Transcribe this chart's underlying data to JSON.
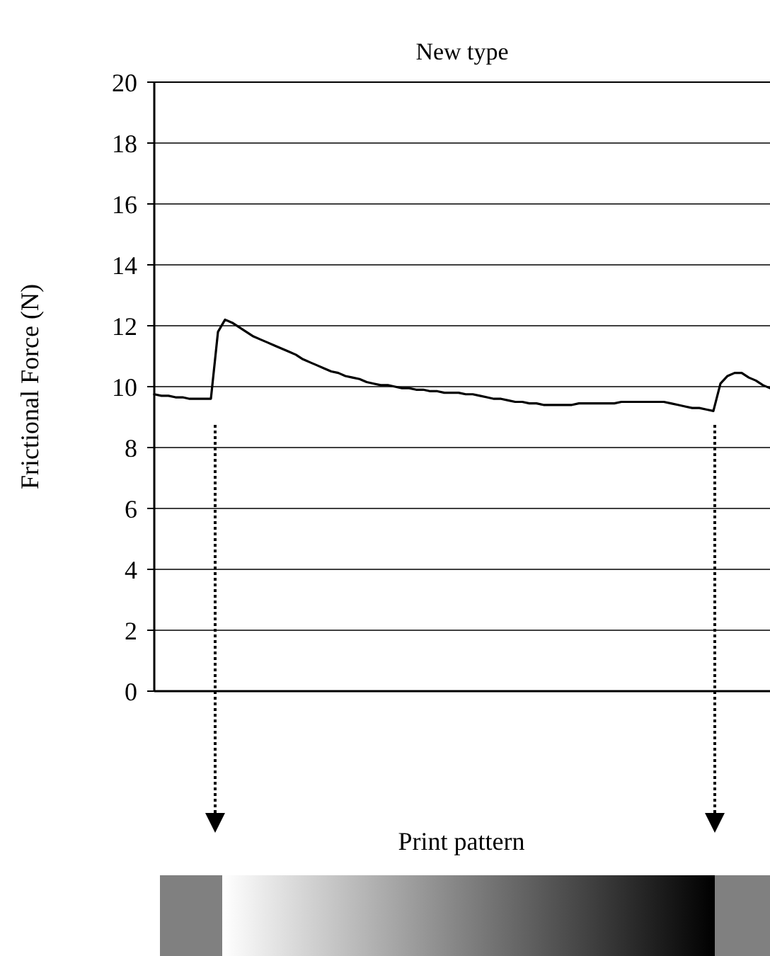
{
  "chart_data": {
    "type": "line",
    "title": "New type",
    "ylabel": "Frictional Force (N)",
    "annotations": [
      "Print pattern"
    ],
    "categories": [
      null,
      null,
      null,
      null,
      null,
      null,
      null,
      null,
      null,
      null,
      null,
      null,
      null,
      null,
      null,
      null,
      null,
      null,
      null,
      null,
      null,
      null,
      null,
      null,
      null,
      null,
      null,
      null,
      null,
      null,
      null,
      null,
      null,
      null,
      null,
      null,
      null,
      null,
      null,
      null,
      null,
      null,
      null,
      null,
      null,
      null,
      null,
      null,
      null,
      null,
      null,
      null,
      null,
      null,
      null,
      null,
      null,
      null,
      null,
      null,
      null,
      null,
      null,
      null,
      null,
      null,
      null,
      null,
      null,
      null,
      null,
      null,
      null,
      null,
      null,
      null,
      null,
      null,
      null,
      null,
      null,
      null,
      null,
      null,
      null,
      null,
      null,
      null
    ],
    "series": [
      {
        "color": "#000000",
        "values": [
          9.75,
          9.7,
          9.7,
          9.65,
          9.65,
          9.6,
          9.6,
          9.6,
          9.6,
          11.8,
          12.2,
          12.1,
          11.95,
          11.8,
          11.65,
          11.55,
          11.45,
          11.35,
          11.25,
          11.15,
          11.05,
          10.9,
          10.8,
          10.7,
          10.6,
          10.5,
          10.45,
          10.35,
          10.3,
          10.25,
          10.15,
          10.1,
          10.05,
          10.05,
          10.0,
          9.95,
          9.95,
          9.9,
          9.9,
          9.85,
          9.85,
          9.8,
          9.8,
          9.8,
          9.75,
          9.75,
          9.7,
          9.65,
          9.6,
          9.6,
          9.55,
          9.5,
          9.5,
          9.45,
          9.45,
          9.4,
          9.4,
          9.4,
          9.4,
          9.4,
          9.45,
          9.45,
          9.45,
          9.45,
          9.45,
          9.45,
          9.5,
          9.5,
          9.5,
          9.5,
          9.5,
          9.5,
          9.5,
          9.45,
          9.4,
          9.35,
          9.3,
          9.3,
          9.25,
          9.2,
          10.1,
          10.35,
          10.45,
          10.45,
          10.3,
          10.2,
          10.05,
          9.95
        ]
      }
    ],
    "ylim": [
      0,
      20
    ],
    "yticks": [
      0,
      2,
      4,
      6,
      8,
      10,
      12,
      14,
      16,
      18,
      20
    ],
    "grid": "y",
    "tick_labels": "y"
  }
}
